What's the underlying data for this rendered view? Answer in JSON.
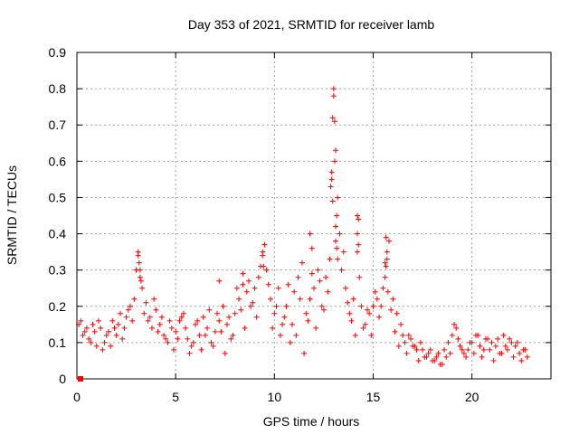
{
  "chart_data": {
    "type": "scatter",
    "title": "Day 353 of 2021, SRMTID for receiver lamb",
    "xlabel": "GPS time / hours",
    "ylabel": "SRMTID / TECUs",
    "xlim": [
      0,
      24
    ],
    "ylim": [
      0,
      0.9
    ],
    "grid": true,
    "x_ticks": [
      0,
      5,
      10,
      15,
      20
    ],
    "x_tick_labels": [
      "0",
      "5",
      "10",
      "15",
      "20"
    ],
    "y_ticks": [
      0,
      0.1,
      0.2,
      0.3,
      0.4,
      0.5,
      0.6,
      0.7,
      0.8,
      0.9
    ],
    "y_tick_labels": [
      "0",
      "0.1",
      "0.2",
      "0.3",
      "0.4",
      "0.5",
      "0.6",
      "0.7",
      "0.8",
      "0.9"
    ],
    "marker": "+",
    "marker_color": "#ff0000",
    "series": [
      {
        "name": "SRMTID",
        "x": [
          0.1,
          0.3,
          0.5,
          0.7,
          0.9,
          1.1,
          1.3,
          1.5,
          1.7,
          1.9,
          2.1,
          2.3,
          2.5,
          2.7,
          2.9,
          3.0,
          3.1,
          3.2,
          3.3,
          3.4,
          3.6,
          3.8,
          4.0,
          4.2,
          4.4,
          4.6,
          4.8,
          5.0,
          5.2,
          5.4,
          5.6,
          5.8,
          6.0,
          6.2,
          6.4,
          6.6,
          6.8,
          7.0,
          7.2,
          7.4,
          7.6,
          7.8,
          8.0,
          8.2,
          8.4,
          8.6,
          8.8,
          9.0,
          9.2,
          9.4,
          9.5,
          9.6,
          9.8,
          10.0,
          10.2,
          10.4,
          10.6,
          10.8,
          11.0,
          11.2,
          11.4,
          11.6,
          11.8,
          12.0,
          12.2,
          12.4,
          12.6,
          12.8,
          12.9,
          13.0,
          13.1,
          13.2,
          13.3,
          13.4,
          13.6,
          13.8,
          14.0,
          14.2,
          14.4,
          14.6,
          14.8,
          15.0,
          15.2,
          15.4,
          15.6,
          15.7,
          15.8,
          16.0,
          16.2,
          16.4,
          16.6,
          16.8,
          17.0,
          17.2,
          17.4,
          17.6,
          17.8,
          18.0,
          18.2,
          18.4,
          18.6,
          18.8,
          19.0,
          19.2,
          19.4,
          19.6,
          19.8,
          20.0,
          20.2,
          20.4,
          20.6,
          20.8,
          21.0,
          21.2,
          21.4,
          21.6,
          21.8,
          22.0,
          22.2,
          22.4,
          22.6,
          22.8,
          0.2,
          0.4,
          0.6,
          0.8,
          1.0,
          1.2,
          1.4,
          1.6,
          1.8,
          2.0,
          2.2,
          2.4,
          2.6,
          2.8,
          3.15,
          3.25,
          3.5,
          3.7,
          3.9,
          4.1,
          4.3,
          4.5,
          4.7,
          4.9,
          5.1,
          5.3,
          5.5,
          5.7,
          5.9,
          6.1,
          6.3,
          6.5,
          6.7,
          6.9,
          7.1,
          7.3,
          7.5,
          7.7,
          7.9,
          8.1,
          8.3,
          8.5,
          8.7,
          8.9,
          9.1,
          9.3,
          9.7,
          9.9,
          10.1,
          10.3,
          10.5,
          10.7,
          10.9,
          11.1,
          11.3,
          11.5,
          11.7,
          11.9,
          12.1,
          12.3,
          12.5,
          12.7,
          12.95,
          13.05,
          13.15,
          13.5,
          13.7,
          13.9,
          14.1,
          14.25,
          14.3,
          14.5,
          14.7,
          14.9,
          15.1,
          15.3,
          15.5,
          15.65,
          15.75,
          15.9,
          16.1,
          16.3,
          16.5,
          16.7,
          16.9,
          17.1,
          17.3,
          17.5,
          17.7,
          17.9,
          18.1,
          18.3,
          18.5,
          18.7,
          18.9,
          19.1,
          19.3,
          19.5,
          19.7,
          19.9,
          20.1,
          20.3,
          20.5,
          20.7,
          20.9,
          21.1,
          21.3,
          21.5,
          21.7,
          21.9,
          22.1,
          22.3,
          22.5,
          22.7,
          12.85,
          12.9,
          12.95,
          13.0,
          13.05,
          13.1,
          13.1,
          13.15,
          13.2,
          14.2,
          14.2,
          14.25,
          15.6,
          15.65,
          15.7,
          9.4,
          9.45,
          11.8,
          11.9,
          3.1,
          3.2,
          8.4,
          7.2
        ],
        "y": [
          0.15,
          0.12,
          0.14,
          0.1,
          0.13,
          0.16,
          0.08,
          0.12,
          0.09,
          0.14,
          0.15,
          0.11,
          0.17,
          0.2,
          0.22,
          0.3,
          0.34,
          0.28,
          0.25,
          0.18,
          0.16,
          0.14,
          0.19,
          0.15,
          0.12,
          0.1,
          0.14,
          0.13,
          0.16,
          0.18,
          0.11,
          0.09,
          0.15,
          0.12,
          0.17,
          0.14,
          0.1,
          0.13,
          0.16,
          0.2,
          0.15,
          0.11,
          0.18,
          0.22,
          0.26,
          0.24,
          0.2,
          0.25,
          0.28,
          0.35,
          0.37,
          0.3,
          0.22,
          0.18,
          0.25,
          0.15,
          0.2,
          0.1,
          0.24,
          0.28,
          0.32,
          0.18,
          0.22,
          0.25,
          0.3,
          0.2,
          0.28,
          0.33,
          0.55,
          0.8,
          0.63,
          0.5,
          0.4,
          0.3,
          0.25,
          0.18,
          0.22,
          0.35,
          0.2,
          0.15,
          0.18,
          0.2,
          0.22,
          0.2,
          0.28,
          0.35,
          0.38,
          0.22,
          0.18,
          0.15,
          0.1,
          0.12,
          0.09,
          0.08,
          0.1,
          0.06,
          0.07,
          0.05,
          0.06,
          0.04,
          0.08,
          0.1,
          0.12,
          0.14,
          0.09,
          0.07,
          0.08,
          0.1,
          0.12,
          0.09,
          0.08,
          0.11,
          0.1,
          0.09,
          0.07,
          0.12,
          0.08,
          0.1,
          0.09,
          0.07,
          0.08,
          0.06,
          0.16,
          0.13,
          0.11,
          0.15,
          0.09,
          0.14,
          0.1,
          0.13,
          0.16,
          0.12,
          0.18,
          0.14,
          0.19,
          0.16,
          0.32,
          0.27,
          0.21,
          0.17,
          0.22,
          0.13,
          0.17,
          0.11,
          0.16,
          0.08,
          0.11,
          0.17,
          0.14,
          0.07,
          0.1,
          0.16,
          0.08,
          0.12,
          0.19,
          0.09,
          0.18,
          0.13,
          0.07,
          0.17,
          0.12,
          0.25,
          0.19,
          0.14,
          0.27,
          0.21,
          0.17,
          0.31,
          0.26,
          0.14,
          0.2,
          0.12,
          0.17,
          0.26,
          0.15,
          0.12,
          0.22,
          0.07,
          0.16,
          0.29,
          0.14,
          0.27,
          0.19,
          0.24,
          0.72,
          0.6,
          0.45,
          0.35,
          0.21,
          0.16,
          0.12,
          0.44,
          0.28,
          0.14,
          0.19,
          0.12,
          0.24,
          0.17,
          0.25,
          0.31,
          0.24,
          0.19,
          0.13,
          0.09,
          0.12,
          0.07,
          0.11,
          0.09,
          0.05,
          0.08,
          0.06,
          0.08,
          0.05,
          0.07,
          0.04,
          0.06,
          0.07,
          0.15,
          0.11,
          0.08,
          0.06,
          0.1,
          0.07,
          0.12,
          0.06,
          0.11,
          0.08,
          0.05,
          0.11,
          0.07,
          0.09,
          0.11,
          0.06,
          0.1,
          0.05,
          0.08,
          0.53,
          0.57,
          0.49,
          0.78,
          0.71,
          0.42,
          0.38,
          0.36,
          0.33,
          0.4,
          0.45,
          0.37,
          0.32,
          0.39,
          0.33,
          0.34,
          0.31,
          0.4,
          0.36,
          0.35,
          0.3,
          0.29,
          0.27
        ]
      }
    ]
  }
}
